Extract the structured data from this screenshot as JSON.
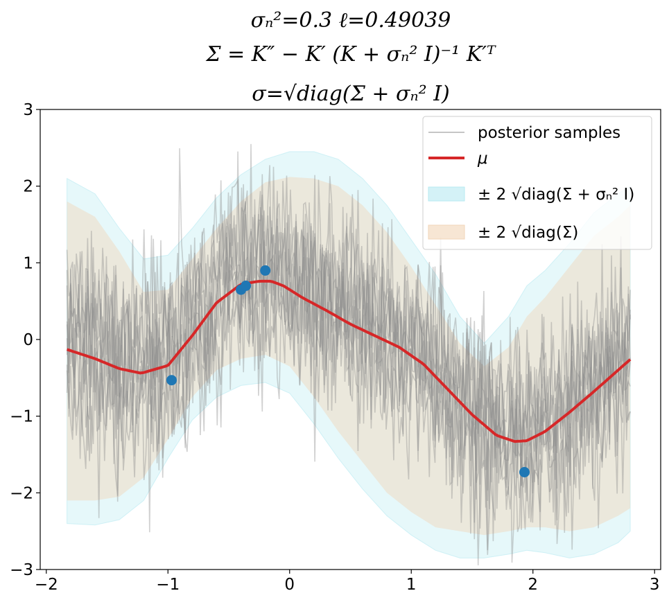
{
  "chart_data": {
    "type": "line",
    "title_lines": [
      "σₙ²=0.3   ℓ=0.49039",
      "Σ = K″ − K′ (K + σₙ² I)⁻¹ K′ᵀ",
      "σ=√diag(Σ + σₙ² I)"
    ],
    "xlim": [
      -2.05,
      3.05
    ],
    "ylim": [
      -3,
      3
    ],
    "x_ticks": [
      -2,
      -1,
      0,
      1,
      2,
      3
    ],
    "x_tick_labels": [
      "−2",
      "−1",
      "0",
      "1",
      "2",
      "3"
    ],
    "y_ticks": [
      -3,
      -2,
      -1,
      0,
      1,
      2,
      3
    ],
    "y_tick_labels": [
      "−3",
      "−2",
      "−1",
      "0",
      "1",
      "2",
      "3"
    ],
    "legend_position": "top-right",
    "legend": {
      "samples": "posterior samples",
      "mean": "μ",
      "band_total": "± 2 √diag(Σ + σₙ² I)",
      "band_latent": "± 2 √diag(Σ)"
    },
    "colors": {
      "mean": "#d62728",
      "points": "#1f77b4",
      "samples": "#8c8c8c",
      "band_total": "#b7eaf2",
      "band_latent": "#f2d5b8"
    },
    "x_range": [
      -1.83,
      2.8
    ],
    "mean_curve": {
      "x": [
        -1.83,
        -1.6,
        -1.4,
        -1.22,
        -1.0,
        -0.8,
        -0.6,
        -0.4,
        -0.25,
        -0.15,
        -0.05,
        0.1,
        0.3,
        0.5,
        0.7,
        0.9,
        1.1,
        1.3,
        1.5,
        1.7,
        1.85,
        1.95,
        2.1,
        2.3,
        2.5,
        2.7,
        2.8
      ],
      "y": [
        -0.13,
        -0.25,
        -0.38,
        -0.44,
        -0.34,
        0.05,
        0.48,
        0.72,
        0.76,
        0.76,
        0.7,
        0.55,
        0.38,
        0.2,
        0.05,
        -0.1,
        -0.32,
        -0.65,
        -0.98,
        -1.25,
        -1.33,
        -1.32,
        -1.2,
        -0.95,
        -0.68,
        -0.4,
        -0.26
      ]
    },
    "band_total": {
      "x": [
        -1.83,
        -1.6,
        -1.4,
        -1.2,
        -1.0,
        -0.8,
        -0.6,
        -0.4,
        -0.2,
        0.0,
        0.2,
        0.4,
        0.6,
        0.8,
        1.0,
        1.2,
        1.4,
        1.6,
        1.8,
        1.95,
        2.1,
        2.3,
        2.5,
        2.7,
        2.8
      ],
      "upper": [
        2.1,
        1.9,
        1.45,
        1.05,
        1.1,
        1.45,
        1.85,
        2.15,
        2.35,
        2.45,
        2.45,
        2.35,
        2.1,
        1.75,
        1.3,
        0.85,
        0.3,
        -0.05,
        0.3,
        0.7,
        0.9,
        1.25,
        1.65,
        1.9,
        2.0
      ],
      "lower": [
        -2.4,
        -2.42,
        -2.35,
        -2.1,
        -1.55,
        -1.05,
        -0.75,
        -0.6,
        -0.56,
        -0.7,
        -1.1,
        -1.55,
        -1.95,
        -2.3,
        -2.55,
        -2.75,
        -2.85,
        -2.85,
        -2.8,
        -2.75,
        -2.78,
        -2.85,
        -2.8,
        -2.65,
        -2.5
      ]
    },
    "band_latent": {
      "x": [
        -1.83,
        -1.6,
        -1.4,
        -1.2,
        -1.0,
        -0.8,
        -0.6,
        -0.4,
        -0.2,
        0.0,
        0.2,
        0.4,
        0.6,
        0.8,
        1.0,
        1.2,
        1.4,
        1.6,
        1.8,
        1.95,
        2.1,
        2.3,
        2.5,
        2.7,
        2.8
      ],
      "upper": [
        1.8,
        1.6,
        1.15,
        0.62,
        0.65,
        1.05,
        1.45,
        1.8,
        2.05,
        2.12,
        2.1,
        2.0,
        1.75,
        1.4,
        0.95,
        0.45,
        -0.05,
        -0.35,
        -0.1,
        0.3,
        0.55,
        0.95,
        1.35,
        1.6,
        1.75
      ],
      "lower": [
        -2.1,
        -2.1,
        -2.05,
        -1.8,
        -1.3,
        -0.75,
        -0.4,
        -0.25,
        -0.2,
        -0.35,
        -0.75,
        -1.2,
        -1.6,
        -2.0,
        -2.25,
        -2.45,
        -2.5,
        -2.55,
        -2.5,
        -2.45,
        -2.45,
        -2.5,
        -2.45,
        -2.3,
        -2.2
      ]
    },
    "points": {
      "x": [
        -0.97,
        -0.4,
        -0.36,
        -0.2,
        1.93
      ],
      "y": [
        -0.53,
        0.65,
        0.7,
        0.9,
        -1.73
      ]
    },
    "sample_count": 10,
    "sample_noise_sd": 0.55
  }
}
